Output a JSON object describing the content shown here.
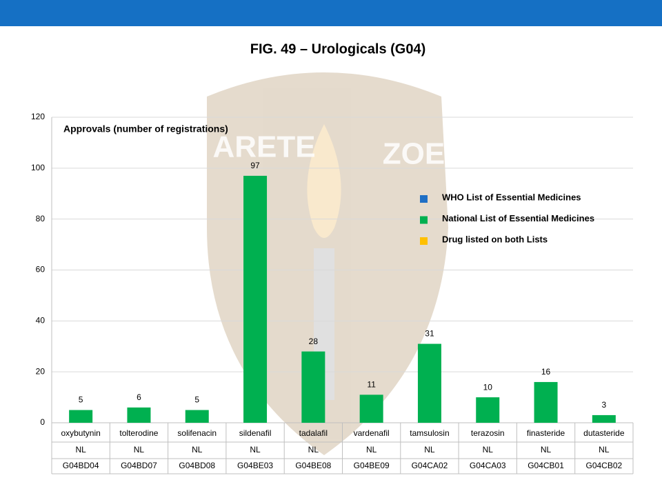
{
  "chart_data": {
    "type": "bar",
    "title": "FIG. 49 – Urologicals (G04)",
    "annotation": "Approvals (number of registrations)",
    "watermark": [
      "ARETE",
      "ZOE"
    ],
    "categories": [
      "oxybutynin",
      "tolterodine",
      "solifenacin",
      "sildenafil",
      "tadalafil",
      "vardenafil",
      "tamsulosin",
      "terazosin",
      "finasteride",
      "dutasteride"
    ],
    "table_rows": {
      "list": [
        "NL",
        "NL",
        "NL",
        "NL",
        "NL",
        "NL",
        "NL",
        "NL",
        "NL",
        "NL"
      ],
      "code": [
        "G04BD04",
        "G04BD07",
        "G04BD08",
        "G04BE03",
        "G04BE08",
        "G04BE09",
        "G04CA02",
        "G04CA03",
        "G04CB01",
        "G04CB02"
      ]
    },
    "series": [
      {
        "name": "National List of Essential Medicines",
        "color": "#00b050",
        "values": [
          5,
          6,
          5,
          97,
          28,
          11,
          31,
          10,
          16,
          3
        ]
      }
    ],
    "legend": [
      {
        "name": "WHO List of Essential Medicines",
        "color": "#1f6fc5"
      },
      {
        "name": "National List of Essential Medicines",
        "color": "#00b050"
      },
      {
        "name": "Drug listed on both Lists",
        "color": "#ffc000"
      }
    ],
    "ylim": [
      0,
      120
    ],
    "yticks": [
      0,
      20,
      40,
      60,
      80,
      100,
      120
    ],
    "grid": true
  }
}
